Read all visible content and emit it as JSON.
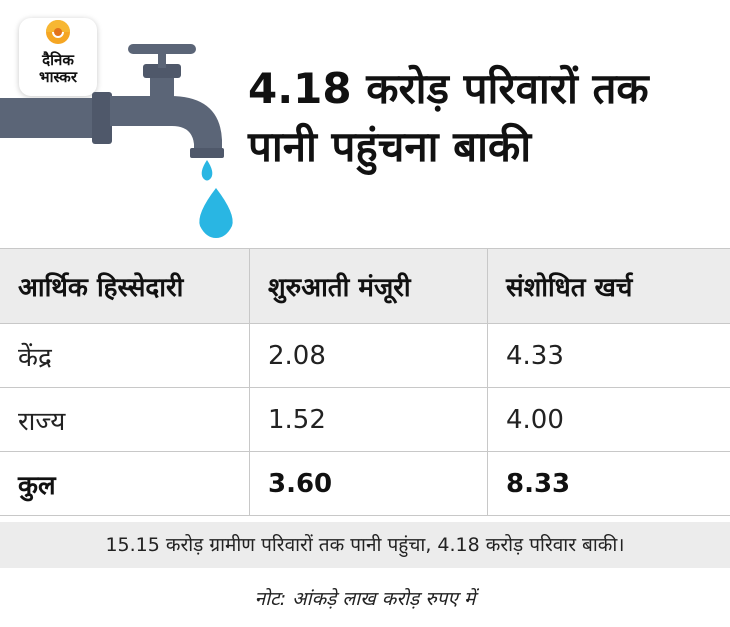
{
  "brand": {
    "line1": "दैनिक",
    "line2": "भास्कर",
    "accent_color": "#f5a623"
  },
  "title": {
    "line1": "4.18 करोड़ परिवारों तक",
    "line2": "पानी पहुंचना बाकी"
  },
  "colors": {
    "tap": "#5b6577",
    "drop": "#29b6e3",
    "header_bg": "#ececec"
  },
  "chart_data": {
    "type": "table",
    "columns": [
      "आर्थिक हिस्सेदारी",
      "शुरुआती मंजूरी",
      "संशोधित खर्च"
    ],
    "rows": [
      {
        "label": "केंद्र",
        "values": [
          "2.08",
          "4.33"
        ]
      },
      {
        "label": "राज्य",
        "values": [
          "1.52",
          "4.00"
        ]
      },
      {
        "label": "कुल",
        "values": [
          "3.60",
          "8.33"
        ]
      }
    ]
  },
  "footer": {
    "summary": "15.15 करोड़ ग्रामीण परिवारों तक पानी पहुंचा, 4.18 करोड़ परिवार बाकी।",
    "note": "नोट: आंकड़े लाख करोड़ रुपए में"
  }
}
